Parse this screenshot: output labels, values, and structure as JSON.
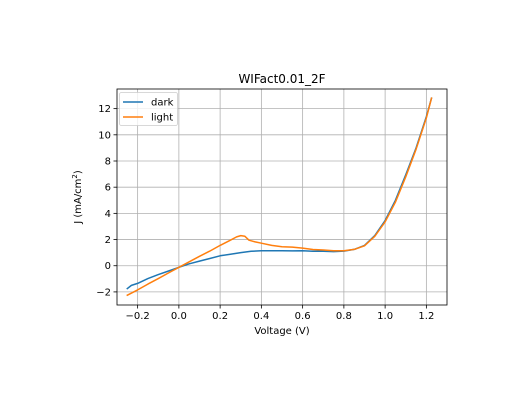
{
  "chart_data": {
    "type": "line",
    "title": "WIFact0.01_2F",
    "xlabel": "Voltage (V)",
    "ylabel": "J (mA/cm²)",
    "xlim": [
      -0.3,
      1.3
    ],
    "ylim": [
      -3,
      13.5
    ],
    "x_ticks": [
      -0.2,
      0.0,
      0.2,
      0.4,
      0.6,
      0.8,
      1.0,
      1.2
    ],
    "x_tick_labels": [
      "−0.2",
      "0.0",
      "0.2",
      "0.4",
      "0.6",
      "0.8",
      "1.0",
      "1.2"
    ],
    "y_ticks": [
      -2,
      0,
      2,
      4,
      6,
      8,
      10,
      12
    ],
    "y_tick_labels": [
      "−2",
      "0",
      "2",
      "4",
      "6",
      "8",
      "10",
      "12"
    ],
    "grid": true,
    "legend_position": "upper-left",
    "series": [
      {
        "name": "dark",
        "color": "#1f77b4",
        "points": [
          [
            -0.25,
            -1.75
          ],
          [
            -0.23,
            -1.5
          ],
          [
            -0.2,
            -1.35
          ],
          [
            -0.15,
            -0.98
          ],
          [
            -0.1,
            -0.68
          ],
          [
            -0.05,
            -0.4
          ],
          [
            0.0,
            -0.12
          ],
          [
            0.05,
            0.15
          ],
          [
            0.1,
            0.35
          ],
          [
            0.15,
            0.55
          ],
          [
            0.2,
            0.76
          ],
          [
            0.25,
            0.88
          ],
          [
            0.3,
            1.0
          ],
          [
            0.35,
            1.1
          ],
          [
            0.4,
            1.15
          ],
          [
            0.45,
            1.15
          ],
          [
            0.5,
            1.15
          ],
          [
            0.55,
            1.13
          ],
          [
            0.6,
            1.14
          ],
          [
            0.65,
            1.1
          ],
          [
            0.7,
            1.1
          ],
          [
            0.75,
            1.08
          ],
          [
            0.8,
            1.12
          ],
          [
            0.85,
            1.25
          ],
          [
            0.9,
            1.55
          ],
          [
            0.95,
            2.3
          ],
          [
            1.0,
            3.45
          ],
          [
            1.05,
            5.0
          ],
          [
            1.1,
            6.95
          ],
          [
            1.15,
            9.0
          ],
          [
            1.2,
            11.4
          ],
          [
            1.225,
            12.8
          ]
        ]
      },
      {
        "name": "light",
        "color": "#ff7f0e",
        "points": [
          [
            -0.25,
            -2.25
          ],
          [
            -0.2,
            -1.85
          ],
          [
            -0.15,
            -1.4
          ],
          [
            -0.1,
            -0.98
          ],
          [
            -0.05,
            -0.55
          ],
          [
            0.0,
            -0.12
          ],
          [
            0.05,
            0.3
          ],
          [
            0.1,
            0.72
          ],
          [
            0.15,
            1.12
          ],
          [
            0.2,
            1.55
          ],
          [
            0.25,
            1.95
          ],
          [
            0.28,
            2.2
          ],
          [
            0.3,
            2.3
          ],
          [
            0.32,
            2.25
          ],
          [
            0.34,
            1.95
          ],
          [
            0.37,
            1.82
          ],
          [
            0.4,
            1.72
          ],
          [
            0.45,
            1.55
          ],
          [
            0.5,
            1.45
          ],
          [
            0.55,
            1.42
          ],
          [
            0.6,
            1.35
          ],
          [
            0.65,
            1.24
          ],
          [
            0.7,
            1.2
          ],
          [
            0.75,
            1.14
          ],
          [
            0.8,
            1.15
          ],
          [
            0.85,
            1.25
          ],
          [
            0.9,
            1.52
          ],
          [
            0.95,
            2.25
          ],
          [
            1.0,
            3.35
          ],
          [
            1.05,
            4.85
          ],
          [
            1.1,
            6.8
          ],
          [
            1.15,
            8.9
          ],
          [
            1.2,
            11.3
          ],
          [
            1.225,
            12.8
          ]
        ]
      }
    ]
  }
}
